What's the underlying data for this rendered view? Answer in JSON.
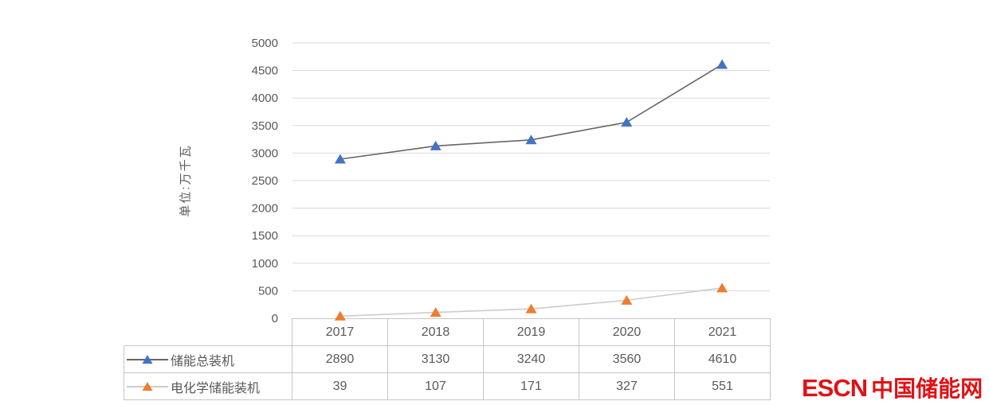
{
  "chart_data": {
    "type": "line",
    "title": "",
    "categories": [
      "2017",
      "2018",
      "2019",
      "2020",
      "2021"
    ],
    "series": [
      {
        "name": "储能总装机",
        "values": [
          2890,
          3130,
          3240,
          3560,
          4610
        ],
        "marker": "triangle-up",
        "marker_color": "#4472c4",
        "line_color": "#666666"
      },
      {
        "name": "电化学储能装机",
        "values": [
          39,
          107,
          171,
          327,
          551
        ],
        "marker": "triangle-up",
        "marker_color": "#ed7d31",
        "line_color": "#cccccc"
      }
    ],
    "xlabel": "",
    "ylabel": "单位:万千瓦",
    "ylim": [
      0,
      5000
    ],
    "yticks": [
      0,
      500,
      1000,
      1500,
      2000,
      2500,
      3000,
      3500,
      4000,
      4500,
      5000
    ],
    "grid": "horizontal",
    "gridline_color": "#d9d9d9",
    "axis_text_color": "#595959",
    "legend_position": "data-table-left",
    "data_table_shown": true
  },
  "table": {
    "border_color": "#c6c6c6",
    "text_color": "#595959"
  },
  "logo": {
    "text_en": "ESCN",
    "text_zh": "中国储能网",
    "color": "#e11115"
  }
}
